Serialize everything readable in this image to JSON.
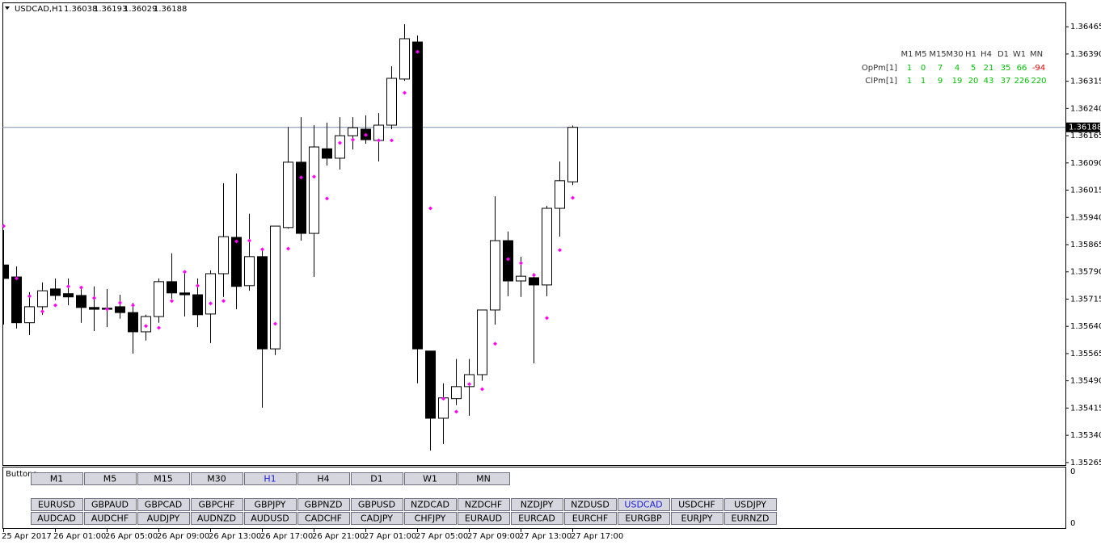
{
  "chart_data": {
    "type": "candlestick",
    "symbol": "USDCAD,H1",
    "categories": [
      "25 Apr 2017",
      null,
      null,
      null,
      "26 Apr 01:00",
      null,
      null,
      null,
      "26 Apr 05:00",
      null,
      null,
      null,
      "26 Apr 09:00",
      null,
      null,
      null,
      "26 Apr 13:00",
      null,
      null,
      null,
      "26 Apr 17:00",
      null,
      null,
      null,
      "26 Apr 21:00",
      null,
      null,
      null,
      "27 Apr 01:00",
      null,
      null,
      null,
      "27 Apr 05:00",
      null,
      null,
      null,
      "27 Apr 09:00",
      null,
      null,
      null,
      "27 Apr 13:00",
      null,
      null,
      null,
      "27 Apr 17:00"
    ],
    "open": [
      1.35809,
      1.35776,
      1.3565,
      1.35694,
      1.35743,
      1.3573,
      1.35725,
      1.35692,
      1.3569,
      1.35694,
      1.35678,
      1.35625,
      1.35667,
      1.35763,
      1.35732,
      1.35727,
      1.35674,
      1.35785,
      1.35885,
      1.35752,
      1.35832,
      1.35578,
      1.35912,
      1.36092,
      1.35896,
      1.36129,
      1.36103,
      1.36165,
      1.36183,
      1.36152,
      1.36194,
      1.36321,
      1.36423,
      1.35572,
      1.35387,
      1.35441,
      1.35474,
      1.35507,
      1.35685,
      1.35876,
      1.35765,
      1.35774,
      1.35754,
      1.35965,
      1.36038
    ],
    "high": [
      1.35905,
      1.35805,
      1.35734,
      1.35761,
      1.35772,
      1.35772,
      1.3575,
      1.3575,
      1.35743,
      1.35727,
      1.35705,
      1.35672,
      1.35772,
      1.35841,
      1.35794,
      1.35772,
      1.35794,
      1.36034,
      1.36061,
      1.3595,
      1.3585,
      1.35916,
      1.36189,
      1.36216,
      1.36194,
      1.36201,
      1.36216,
      1.36216,
      1.36221,
      1.36227,
      1.36356,
      1.36472,
      1.36441,
      1.35572,
      1.35483,
      1.3555,
      1.3555,
      1.35685,
      1.35998,
      1.35901,
      1.35832,
      1.35787,
      1.35972,
      1.36094,
      1.36193
    ],
    "low": [
      1.35645,
      1.35634,
      1.35616,
      1.35672,
      1.35712,
      1.35698,
      1.3565,
      1.35627,
      1.35638,
      1.35661,
      1.35565,
      1.35601,
      1.3565,
      1.35716,
      1.35667,
      1.35638,
      1.35594,
      1.35721,
      1.35687,
      1.35738,
      1.35416,
      1.35561,
      1.35909,
      1.35876,
      1.35776,
      1.36083,
      1.36072,
      1.36127,
      1.36143,
      1.36094,
      1.36183,
      1.36316,
      1.35483,
      1.35298,
      1.35316,
      1.35423,
      1.35394,
      1.3549,
      1.35645,
      1.35723,
      1.35721,
      1.35538,
      1.35723,
      1.35887,
      1.36029
    ],
    "close": [
      1.35772,
      1.3565,
      1.35694,
      1.35738,
      1.35725,
      1.35721,
      1.35692,
      1.35687,
      1.35687,
      1.35678,
      1.35625,
      1.35667,
      1.35763,
      1.35732,
      1.35727,
      1.35672,
      1.35785,
      1.35887,
      1.3575,
      1.35832,
      1.35578,
      1.35916,
      1.36092,
      1.35896,
      1.36134,
      1.36103,
      1.36165,
      1.36187,
      1.36154,
      1.36194,
      1.36323,
      1.36432,
      1.35578,
      1.35387,
      1.35443,
      1.35474,
      1.35507,
      1.35685,
      1.35876,
      1.35765,
      1.35778,
      1.35754,
      1.35965,
      1.36041,
      1.36188
    ],
    "indicator": [
      1.35916,
      1.35772,
      1.35723,
      1.35681,
      1.35698,
      1.3575,
      1.35747,
      1.35718,
      1.35687,
      1.35705,
      1.35698,
      1.35641,
      1.35636,
      1.3571,
      1.3579,
      1.35752,
      1.35703,
      1.3571,
      1.35874,
      1.35876,
      1.35852,
      1.35647,
      1.35854,
      1.3605,
      1.36052,
      1.35992,
      1.36145,
      1.36154,
      1.36167,
      1.36152,
      1.36152,
      1.36283,
      1.36396,
      1.35965,
      1.35441,
      1.35405,
      1.35481,
      1.35467,
      1.35592,
      1.35825,
      1.35814,
      1.35781,
      1.35663,
      1.3585,
      1.35994
    ],
    "indicator_color": "#ff00ff",
    "up_color": "#ffffff",
    "down_color": "#000000",
    "current_price": 1.36188,
    "current_line_color": "#7d8fa8",
    "ylim": [
      1.35258,
      1.36532
    ],
    "yticks": [
      1.36465,
      {
        "value": 1.3639,
        "label": "1.36390"
      },
      1.36315,
      {
        "value": 1.3624,
        "label": "1.36240"
      },
      1.36165,
      {
        "value": 1.3609,
        "label": "1.36090"
      },
      1.36015,
      {
        "value": 1.3594,
        "label": "1.35940"
      },
      1.35865,
      {
        "value": 1.3579,
        "label": "1.35790"
      },
      1.35715,
      {
        "value": 1.3564,
        "label": "1.35640"
      },
      1.35565,
      {
        "value": 1.3549,
        "label": "1.35490"
      },
      1.35415,
      {
        "value": 1.3534,
        "label": "1.35340"
      },
      1.35265
    ],
    "grid": false
  },
  "signal_table": {
    "columns": [
      "M1",
      "M5",
      "M15",
      "M30",
      "H1",
      "H4",
      "D1",
      "W1",
      "MN"
    ],
    "rows": [
      {
        "label": "OpPm[1]",
        "values": [
          1,
          0,
          7,
          4,
          5,
          21,
          35,
          66,
          -94
        ]
      },
      {
        "label": "ClPm[1]",
        "values": [
          1,
          1,
          9,
          19,
          20,
          43,
          37,
          226,
          220
        ]
      }
    ]
  },
  "subwindow": {
    "title": "Buttons",
    "yticks": [
      0,
      0
    ]
  },
  "buttons": {
    "timeframes": [
      "M1",
      "M5",
      "M15",
      "M30",
      "H1",
      "H4",
      "D1",
      "W1",
      "MN"
    ],
    "active_timeframe": 4,
    "symbols_row1": [
      "EURUSD",
      "GBPAUD",
      "GBPCAD",
      "GBPCHF",
      "GBPJPY",
      "GBPNZD",
      "GBPUSD",
      "NZDCAD",
      "NZDCHF",
      "NZDJPY",
      "NZDUSD",
      "USDCAD",
      "USDCHF",
      "USDJPY"
    ],
    "active_symbol": 11,
    "symbols_row2": [
      "AUDCAD",
      "AUDCHF",
      "AUDJPY",
      "AUDNZD",
      "AUDUSD",
      "CADCHF",
      "CADJPY",
      "CHFJPY",
      "EURAUD",
      "EURCAD",
      "EURCHF",
      "EURGBP",
      "EURJPY",
      "EURNZD"
    ]
  }
}
